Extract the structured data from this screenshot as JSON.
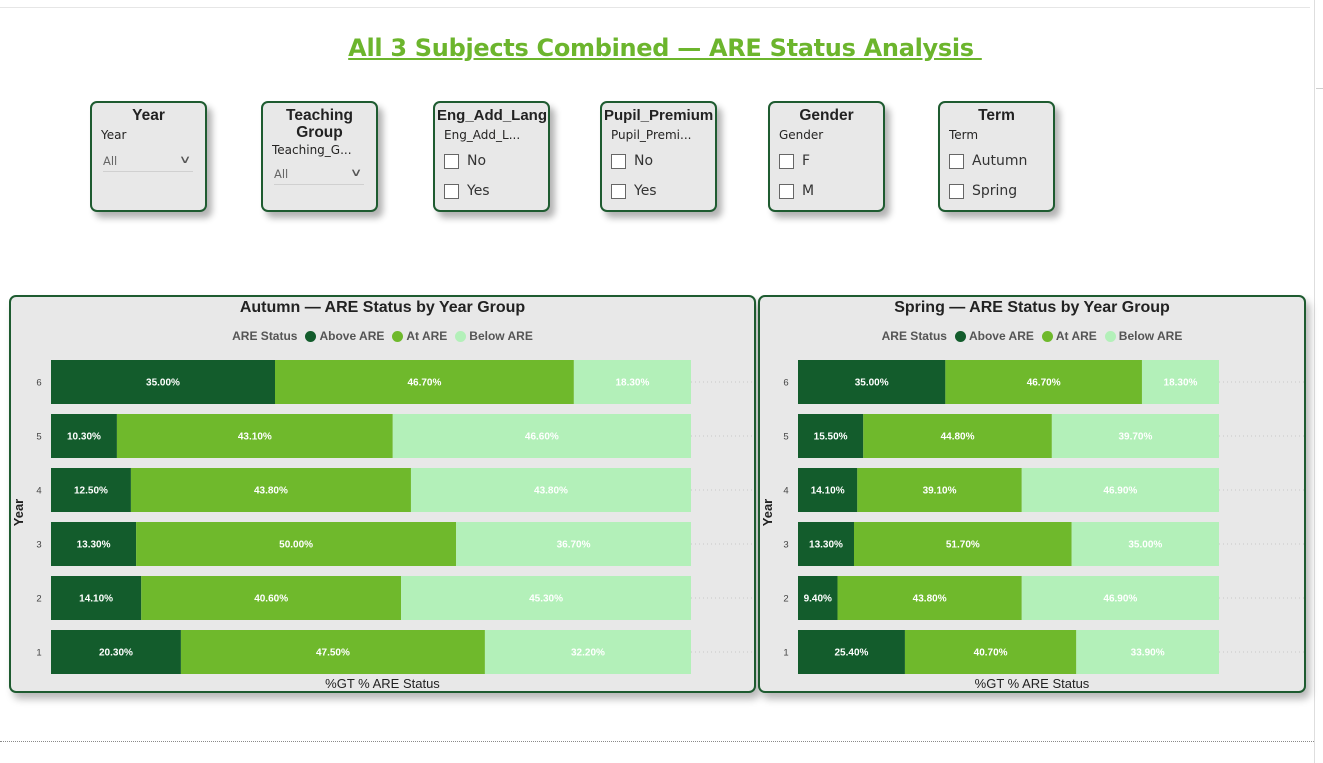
{
  "page": {
    "title": "All 3 Subjects Combined — ARE Status Analysis "
  },
  "colors": {
    "above": "#135c2c",
    "at": "#6fb92c",
    "below": "#b3f0b9",
    "title": "#6cb52d",
    "border": "#1e5b30"
  },
  "slicers": [
    {
      "id": "year",
      "header": "Year",
      "field": "Year",
      "type": "dropdown",
      "value": "All"
    },
    {
      "id": "teaching-group",
      "header": "Teaching Group",
      "field": "Teaching_G...",
      "type": "dropdown",
      "value": "All"
    },
    {
      "id": "eng-add-lang",
      "header": "Eng_Add_Lang",
      "field": "Eng_Add_L...",
      "type": "list",
      "options": [
        "No",
        "Yes"
      ]
    },
    {
      "id": "pupil-premium",
      "header": "Pupil_Premium",
      "field": "Pupil_Premi...",
      "type": "list",
      "options": [
        "No",
        "Yes"
      ]
    },
    {
      "id": "gender",
      "header": "Gender",
      "field": "Gender",
      "type": "list",
      "options": [
        "F",
        "M"
      ]
    },
    {
      "id": "term",
      "header": "Term",
      "field": "Term",
      "type": "list",
      "options": [
        "Autumn",
        "Spring"
      ]
    }
  ],
  "chart_data": [
    {
      "type": "bar",
      "orientation": "horizontal",
      "stacked": "100%",
      "title": "Autumn — ARE Status by Year Group",
      "ylabel": "Year",
      "xlabel": "%GT % ARE Status",
      "legend": {
        "title": "ARE Status",
        "placement": "top",
        "entries": [
          "Above ARE",
          "At ARE",
          "Below ARE"
        ]
      },
      "categories": [
        "6",
        "5",
        "4",
        "3",
        "2",
        "1"
      ],
      "series": [
        {
          "name": "Above ARE",
          "values": [
            35.0,
            10.3,
            12.5,
            13.3,
            14.1,
            20.3
          ],
          "labels": [
            "35.00%",
            "10.30%",
            "12.50%",
            "13.30%",
            "14.10%",
            "20.30%"
          ]
        },
        {
          "name": "At ARE",
          "values": [
            46.7,
            43.1,
            43.8,
            50.0,
            40.6,
            47.5
          ],
          "labels": [
            "46.70%",
            "43.10%",
            "43.80%",
            "50.00%",
            "40.60%",
            "47.50%"
          ]
        },
        {
          "name": "Below ARE",
          "values": [
            18.3,
            46.6,
            43.8,
            36.7,
            45.3,
            32.2
          ],
          "labels": [
            "18.30%",
            "46.60%",
            "43.80%",
            "36.70%",
            "45.30%",
            "32.20%"
          ]
        }
      ]
    },
    {
      "type": "bar",
      "orientation": "horizontal",
      "stacked": "100%",
      "title": "Spring — ARE Status by Year Group",
      "ylabel": "Year",
      "xlabel": "%GT % ARE Status",
      "legend": {
        "title": "ARE Status",
        "placement": "top",
        "entries": [
          "Above ARE",
          "At ARE",
          "Below ARE"
        ]
      },
      "categories": [
        "6",
        "5",
        "4",
        "3",
        "2",
        "1"
      ],
      "series": [
        {
          "name": "Above ARE",
          "values": [
            35.0,
            15.5,
            14.1,
            13.3,
            9.4,
            25.4
          ],
          "labels": [
            "35.00%",
            "15.50%",
            "14.10%",
            "13.30%",
            "9.40%",
            "25.40%"
          ]
        },
        {
          "name": "At ARE",
          "values": [
            46.7,
            44.8,
            39.1,
            51.7,
            43.8,
            40.7
          ],
          "labels": [
            "46.70%",
            "44.80%",
            "39.10%",
            "51.70%",
            "43.80%",
            "40.70%"
          ]
        },
        {
          "name": "Below ARE",
          "values": [
            18.3,
            39.7,
            46.9,
            35.0,
            46.9,
            33.9
          ],
          "labels": [
            "18.30%",
            "39.70%",
            "46.90%",
            "35.00%",
            "46.90%",
            "33.90%"
          ]
        }
      ]
    }
  ]
}
